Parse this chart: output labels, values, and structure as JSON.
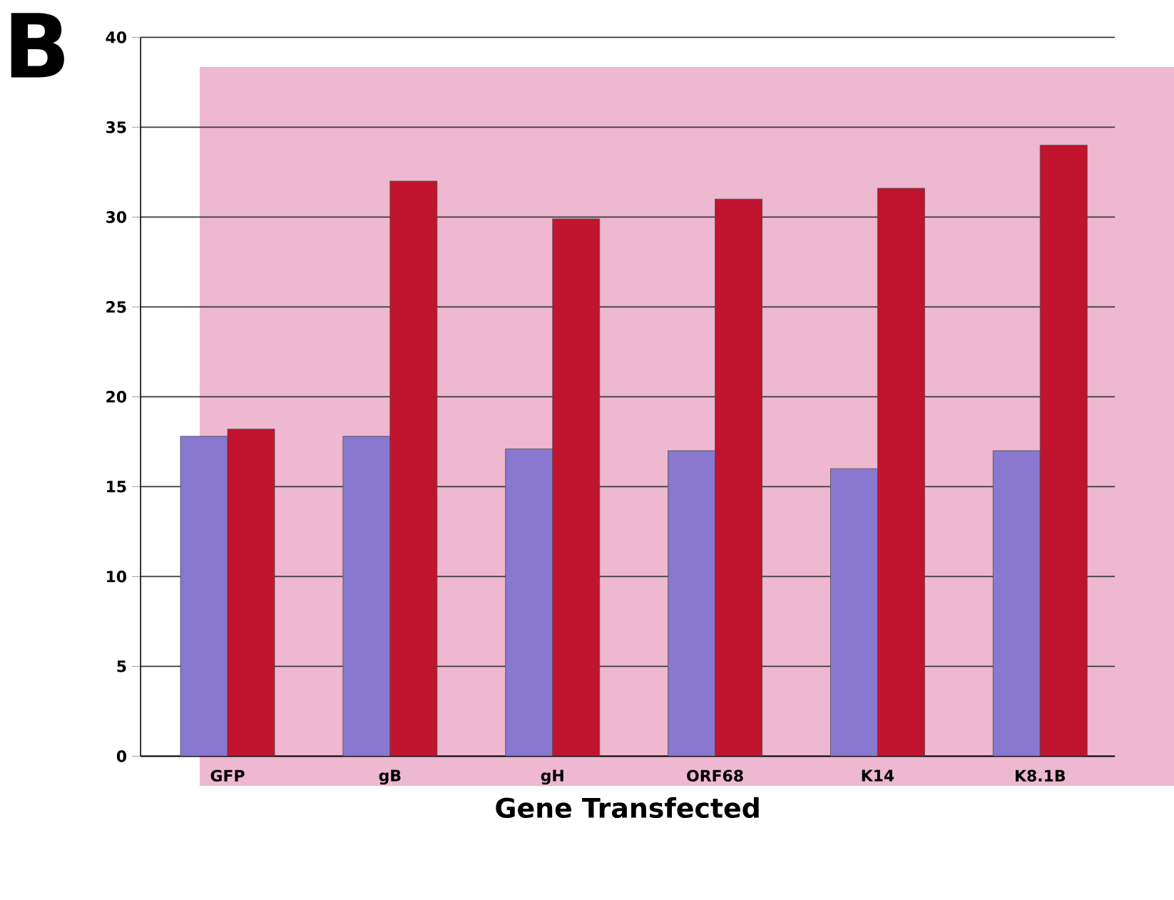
{
  "chart_data": {
    "type": "bar",
    "xlabel": "Gene Transfected",
    "annotations": [
      "B"
    ],
    "categories": [
      "GFP",
      "gB",
      "gH",
      "ORF68",
      "K14",
      "K8.1B"
    ],
    "series": [
      {
        "color": "#8878d0",
        "values": [
          17.8,
          17.8,
          17.1,
          17.0,
          16.0,
          17.0
        ]
      },
      {
        "color": "#c0142e",
        "values": [
          18.2,
          32.0,
          29.9,
          31.0,
          31.6,
          34.0
        ]
      }
    ],
    "ylim": [
      0,
      40
    ],
    "yticks": [
      0,
      5,
      10,
      15,
      20,
      25,
      30,
      35,
      40
    ],
    "grid": "y"
  }
}
